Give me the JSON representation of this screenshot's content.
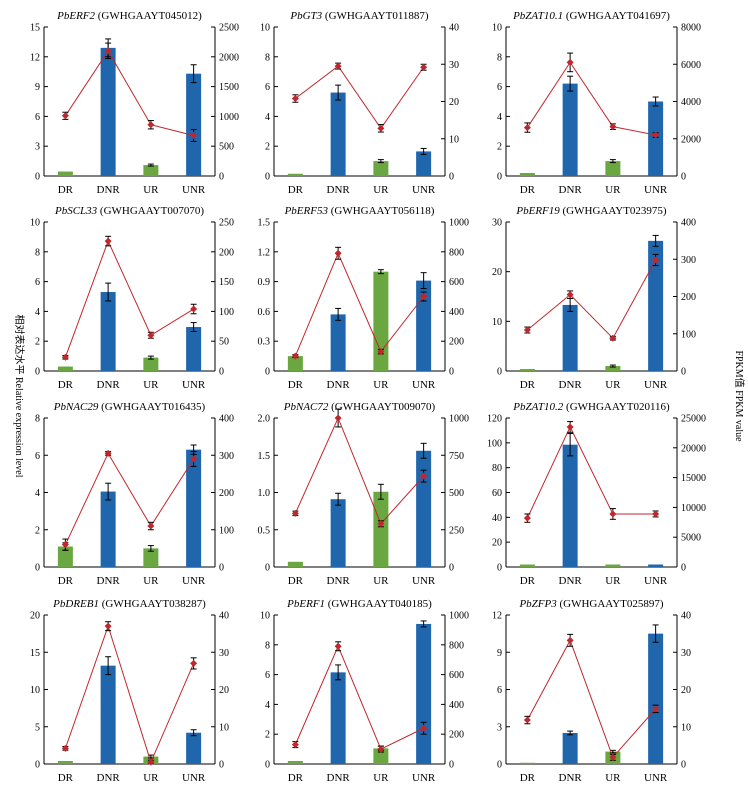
{
  "figure": {
    "ylabel_left": "相对表达水平 Relative expression level",
    "ylabel_right": "FPKM值 FPKM value",
    "colors": {
      "green_bar": "#6aa741",
      "blue_bar": "#1f66ad",
      "line": "#c0272d",
      "marker": "#c0272d"
    }
  },
  "chart_data": [
    {
      "type": "bar",
      "gene": "PbERF2",
      "id": "(GWHGAAYT045012)",
      "categories": [
        "DR",
        "DNR",
        "UR",
        "UNR"
      ],
      "bar_values": [
        0.45,
        12.9,
        1.1,
        10.3
      ],
      "bar_errors": [
        0,
        0.9,
        0.1,
        0.9
      ],
      "ylim_left": [
        0,
        15
      ],
      "ticks_left": [
        "0",
        "3",
        "6",
        "9",
        "12",
        "15"
      ],
      "line_values": [
        1010,
        2100,
        860,
        680
      ],
      "line_errors": [
        60,
        130,
        70,
        100
      ],
      "ylim_right": [
        0,
        2500
      ],
      "ticks_right": [
        "0",
        "500",
        "1000",
        "1500",
        "2000",
        "2500"
      ]
    },
    {
      "type": "bar",
      "gene": "PbGT3",
      "id": "(GWHGAAYT011887)",
      "categories": [
        "DR",
        "DNR",
        "UR",
        "UNR"
      ],
      "bar_values": [
        0.15,
        5.6,
        1.0,
        1.65
      ],
      "bar_errors": [
        0,
        0.5,
        0.1,
        0.2
      ],
      "ylim_left": [
        0,
        10
      ],
      "ticks_left": [
        "0",
        "2",
        "4",
        "6",
        "8",
        "10"
      ],
      "line_values": [
        20.8,
        29.5,
        12.8,
        29.2
      ],
      "line_errors": [
        1.0,
        0.8,
        1.0,
        0.8
      ],
      "ylim_right": [
        0,
        40
      ],
      "ticks_right": [
        "0",
        "10",
        "20",
        "30",
        "40"
      ]
    },
    {
      "type": "bar",
      "gene": "PbZAT10.1",
      "id": "(GWHGAAYT041697)",
      "categories": [
        "DR",
        "DNR",
        "UR",
        "UNR"
      ],
      "bar_values": [
        0.2,
        6.2,
        1.0,
        5.0
      ],
      "bar_errors": [
        0,
        0.5,
        0.1,
        0.3
      ],
      "ylim_left": [
        0,
        10
      ],
      "ticks_left": [
        "0",
        "2",
        "4",
        "6",
        "8",
        "10"
      ],
      "line_values": [
        2600,
        6100,
        2650,
        2200
      ],
      "line_errors": [
        250,
        500,
        150,
        120
      ],
      "ylim_right": [
        0,
        8000
      ],
      "ticks_right": [
        "0",
        "2000",
        "4000",
        "6000",
        "8000"
      ]
    },
    {
      "type": "bar",
      "gene": "PbSCL33",
      "id": "(GWHGAAYT007070)",
      "categories": [
        "DR",
        "DNR",
        "UR",
        "UNR"
      ],
      "bar_values": [
        0.3,
        5.3,
        0.9,
        2.95
      ],
      "bar_errors": [
        0,
        0.6,
        0.1,
        0.3
      ],
      "ylim_left": [
        0,
        10
      ],
      "ticks_left": [
        "0",
        "2",
        "4",
        "6",
        "8",
        "10"
      ],
      "line_values": [
        23,
        218,
        60,
        104
      ],
      "line_errors": [
        3,
        8,
        5,
        8
      ],
      "ylim_right": [
        0,
        250
      ],
      "ticks_right": [
        "0",
        "50",
        "100",
        "150",
        "200",
        "250"
      ]
    },
    {
      "type": "bar",
      "gene": "PbERF53",
      "id": "(GWHGAAYT056118)",
      "categories": [
        "DR",
        "DNR",
        "UR",
        "UNR"
      ],
      "bar_values": [
        0.15,
        0.57,
        1.0,
        0.91
      ],
      "bar_errors": [
        0,
        0.06,
        0.02,
        0.08
      ],
      "ylim_left": [
        0,
        1.5
      ],
      "ticks_left": [
        "0",
        "0.3",
        "0.6",
        "0.9",
        "1.2",
        "1.5"
      ],
      "line_values": [
        100,
        790,
        130,
        500
      ],
      "line_errors": [
        10,
        40,
        15,
        30
      ],
      "ylim_right": [
        0,
        1000
      ],
      "ticks_right": [
        "0",
        "200",
        "400",
        "600",
        "800",
        "1000"
      ]
    },
    {
      "type": "bar",
      "gene": "PbERF19",
      "id": "(GWHGAAYT023975)",
      "categories": [
        "DR",
        "DNR",
        "UR",
        "UNR"
      ],
      "bar_values": [
        0.4,
        13.3,
        1.0,
        26.2
      ],
      "bar_errors": [
        0,
        1.3,
        0.2,
        1.1
      ],
      "ylim_left": [
        0,
        30
      ],
      "ticks_left": [
        "0",
        "10",
        "20",
        "30"
      ],
      "line_values": [
        110,
        205,
        88,
        298
      ],
      "line_errors": [
        8,
        10,
        5,
        15
      ],
      "ylim_right": [
        0,
        400
      ],
      "ticks_right": [
        "0",
        "100",
        "200",
        "300",
        "400"
      ]
    },
    {
      "type": "bar",
      "gene": "PbNAC29",
      "id": "(GWHGAAYT016435)",
      "categories": [
        "DR",
        "DNR",
        "UR",
        "UNR"
      ],
      "bar_values": [
        1.1,
        4.05,
        1.0,
        6.3
      ],
      "bar_errors": [
        0.2,
        0.45,
        0.15,
        0.25
      ],
      "ylim_left": [
        0,
        8
      ],
      "ticks_left": [
        "0",
        "2",
        "4",
        "6",
        "8"
      ],
      "line_values": [
        60,
        305,
        110,
        290
      ],
      "line_errors": [
        15,
        5,
        10,
        20
      ],
      "ylim_right": [
        0,
        400
      ],
      "ticks_right": [
        "0",
        "100",
        "200",
        "300",
        "400"
      ]
    },
    {
      "type": "bar",
      "gene": "PbNAC72",
      "id": "(GWHGAAYT009070)",
      "categories": [
        "DR",
        "DNR",
        "UR",
        "UNR"
      ],
      "bar_values": [
        0.07,
        0.91,
        1.01,
        1.56
      ],
      "bar_errors": [
        0,
        0.08,
        0.1,
        0.1
      ],
      "ylim_left": [
        0,
        2.0
      ],
      "ticks_left": [
        "0",
        "0.5",
        "1.0",
        "1.5",
        "2.0"
      ],
      "line_values": [
        360,
        1000,
        290,
        610
      ],
      "line_errors": [
        15,
        60,
        20,
        40
      ],
      "ylim_right": [
        0,
        1000
      ],
      "ticks_right": [
        "0",
        "250",
        "500",
        "750",
        "1000"
      ]
    },
    {
      "type": "bar",
      "gene": "PbZAT10.2",
      "id": "(GWHGAAYT020116)",
      "categories": [
        "DR",
        "DNR",
        "UR",
        "UNR"
      ],
      "bar_values": [
        2.0,
        98.5,
        2.0,
        2.0
      ],
      "bar_errors": [
        0,
        9,
        0,
        0
      ],
      "ylim_left": [
        0,
        120
      ],
      "ticks_left": [
        "0",
        "20",
        "40",
        "60",
        "80",
        "100",
        "120"
      ],
      "line_values": [
        8200,
        23500,
        8900,
        8900
      ],
      "line_errors": [
        700,
        900,
        900,
        500
      ],
      "ylim_right": [
        0,
        25000
      ],
      "ticks_right": [
        "0",
        "5000",
        "10000",
        "15000",
        "20000",
        "25000"
      ]
    },
    {
      "type": "bar",
      "gene": "PbDREB1",
      "id": "(GWHGAAYT038287)",
      "categories": [
        "DR",
        "DNR",
        "UR",
        "UNR"
      ],
      "bar_values": [
        0.4,
        13.2,
        1.0,
        4.2
      ],
      "bar_errors": [
        0,
        1.2,
        0.2,
        0.4
      ],
      "ylim_left": [
        0,
        20
      ],
      "ticks_left": [
        "0",
        "5",
        "10",
        "15",
        "20"
      ],
      "line_values": [
        4.2,
        37,
        0.5,
        27
      ],
      "line_errors": [
        0.5,
        1.2,
        0.5,
        1.5
      ],
      "ylim_right": [
        0,
        40
      ],
      "ticks_right": [
        "0",
        "10",
        "20",
        "30",
        "40"
      ]
    },
    {
      "type": "bar",
      "gene": "PbERF1",
      "id": "(GWHGAAYT040185)",
      "categories": [
        "DR",
        "DNR",
        "UR",
        "UNR"
      ],
      "bar_values": [
        0.2,
        6.15,
        1.05,
        9.4
      ],
      "bar_errors": [
        0,
        0.5,
        0.15,
        0.2
      ],
      "ylim_left": [
        0,
        10
      ],
      "ticks_left": [
        "0",
        "2",
        "4",
        "6",
        "8",
        "10"
      ],
      "line_values": [
        130,
        790,
        100,
        240
      ],
      "line_errors": [
        20,
        30,
        20,
        40
      ],
      "ylim_right": [
        0,
        1000
      ],
      "ticks_right": [
        "0",
        "200",
        "400",
        "600",
        "800",
        "1000"
      ]
    },
    {
      "type": "bar",
      "gene": "PbZFP3",
      "id": "(GWHGAAYT025897)",
      "categories": [
        "DR",
        "DNR",
        "UR",
        "UNR"
      ],
      "bar_values": [
        0.1,
        2.5,
        1.0,
        10.5
      ],
      "bar_errors": [
        0,
        0.15,
        0.1,
        0.7
      ],
      "ylim_left": [
        0,
        12
      ],
      "ticks_left": [
        "0",
        "3",
        "6",
        "9",
        "12"
      ],
      "line_values": [
        11.8,
        33.2,
        1.8,
        14.8
      ],
      "line_errors": [
        1.0,
        1.6,
        0.8,
        1.0
      ],
      "ylim_right": [
        0,
        40
      ],
      "ticks_right": [
        "0",
        "10",
        "20",
        "30",
        "40"
      ]
    }
  ]
}
